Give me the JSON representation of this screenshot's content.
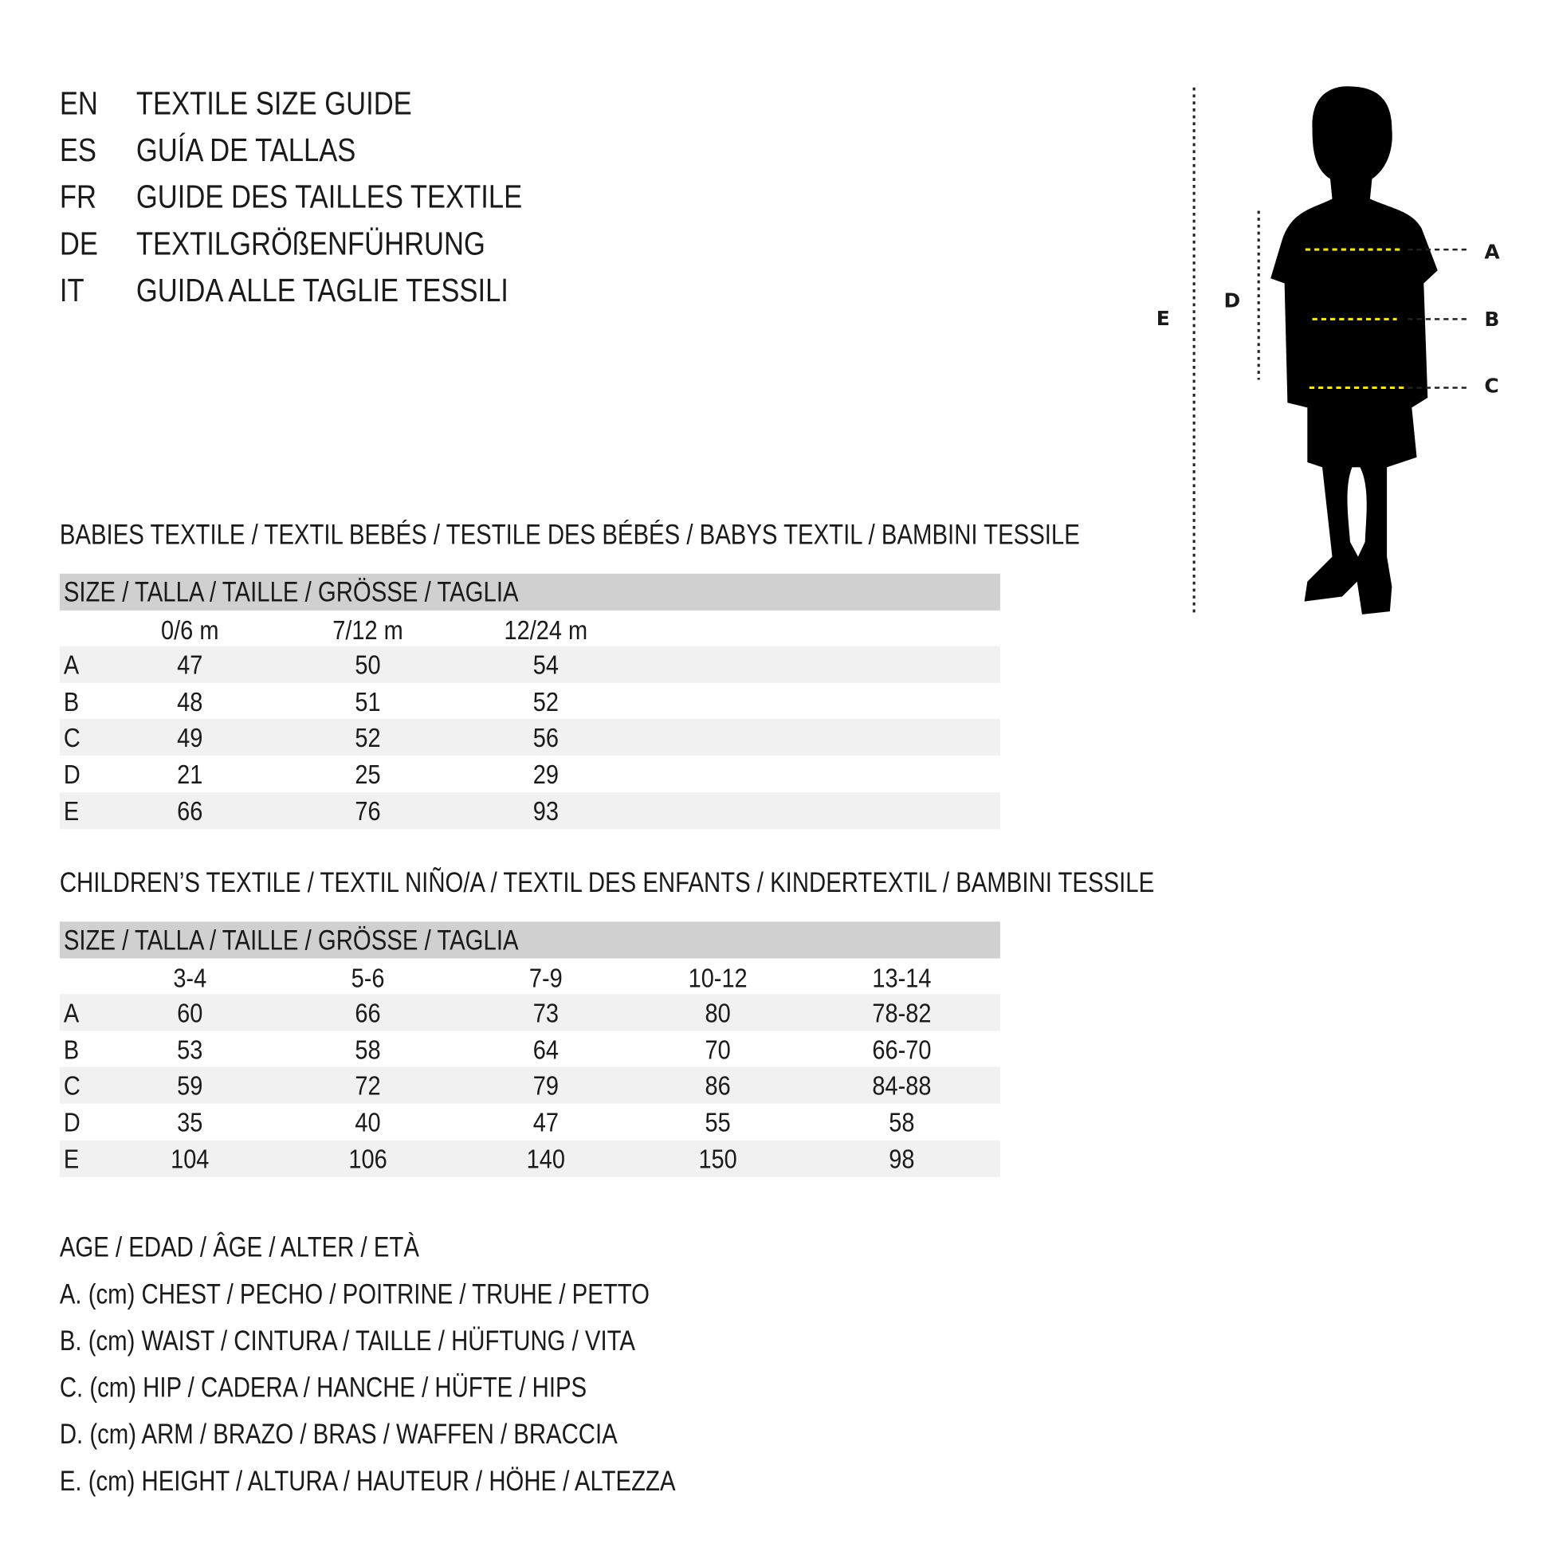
{
  "titles": [
    {
      "code": "EN",
      "text": "TEXTILE SIZE GUIDE"
    },
    {
      "code": "ES",
      "text": "GUÍA DE TALLAS"
    },
    {
      "code": "FR",
      "text": "GUIDE DES TAILLES TEXTILE"
    },
    {
      "code": "DE",
      "text": "TEXTILGRÖßENFÜHRUNG"
    },
    {
      "code": "IT",
      "text": "GUIDA ALLE TAGLIE TESSILI"
    }
  ],
  "figure": {
    "labels": {
      "A": "A",
      "B": "B",
      "C": "C",
      "D": "D",
      "E": "E"
    },
    "accent_color": "#f2e318",
    "silhouette_color": "#000000"
  },
  "babies": {
    "heading": "BABIES TEXTILE / TEXTIL BEBÉS / TESTILE DES BÉBÉS / BABYS TEXTIL / BAMBINI TESSILE",
    "size_label": "SIZE / TALLA / TAILLE / GRÖSSE / TAGLIA",
    "columns": [
      "0/6 m",
      "7/12 m",
      "12/24 m"
    ],
    "rows": [
      {
        "label": "A",
        "values": [
          "47",
          "50",
          "54"
        ]
      },
      {
        "label": "B",
        "values": [
          "48",
          "51",
          "52"
        ]
      },
      {
        "label": "C",
        "values": [
          "49",
          "52",
          "56"
        ]
      },
      {
        "label": "D",
        "values": [
          "21",
          "25",
          "29"
        ]
      },
      {
        "label": "E",
        "values": [
          "66",
          "76",
          "93"
        ]
      }
    ]
  },
  "children": {
    "heading": "CHILDREN’S TEXTILE / TEXTIL NIÑO/A / TEXTIL DES ENFANTS / KINDERTEXTIL / BAMBINI TESSILE",
    "size_label": "SIZE / TALLA / TAILLE / GRÖSSE / TAGLIA",
    "columns": [
      "3-4",
      "5-6",
      "7-9",
      "10-12",
      "13-14"
    ],
    "rows": [
      {
        "label": "A",
        "values": [
          "60",
          "66",
          "73",
          "80",
          "78-82"
        ]
      },
      {
        "label": "B",
        "values": [
          "53",
          "58",
          "64",
          "70",
          "66-70"
        ]
      },
      {
        "label": "C",
        "values": [
          "59",
          "72",
          "79",
          "86",
          "84-88"
        ]
      },
      {
        "label": "D",
        "values": [
          "35",
          "40",
          "47",
          "55",
          "58"
        ]
      },
      {
        "label": "E",
        "values": [
          "104",
          "106",
          "140",
          "150",
          "98"
        ]
      }
    ]
  },
  "legend": [
    "AGE / EDAD / ÂGE / ALTER / ETÀ",
    "A. (cm) CHEST / PECHO / POITRINE / TRUHE / PETTO",
    "B. (cm) WAIST / CINTURA / TAILLE / HÜFTUNG / VITA",
    "C. (cm) HIP / CADERA / HANCHE / HÜFTE / HIPS",
    "D. (cm) ARM / BRAZO / BRAS / WAFFEN / BRACCIA",
    "E. (cm) HEIGHT / ALTURA / HAUTEUR / HÖHE / ALTEZZA"
  ]
}
